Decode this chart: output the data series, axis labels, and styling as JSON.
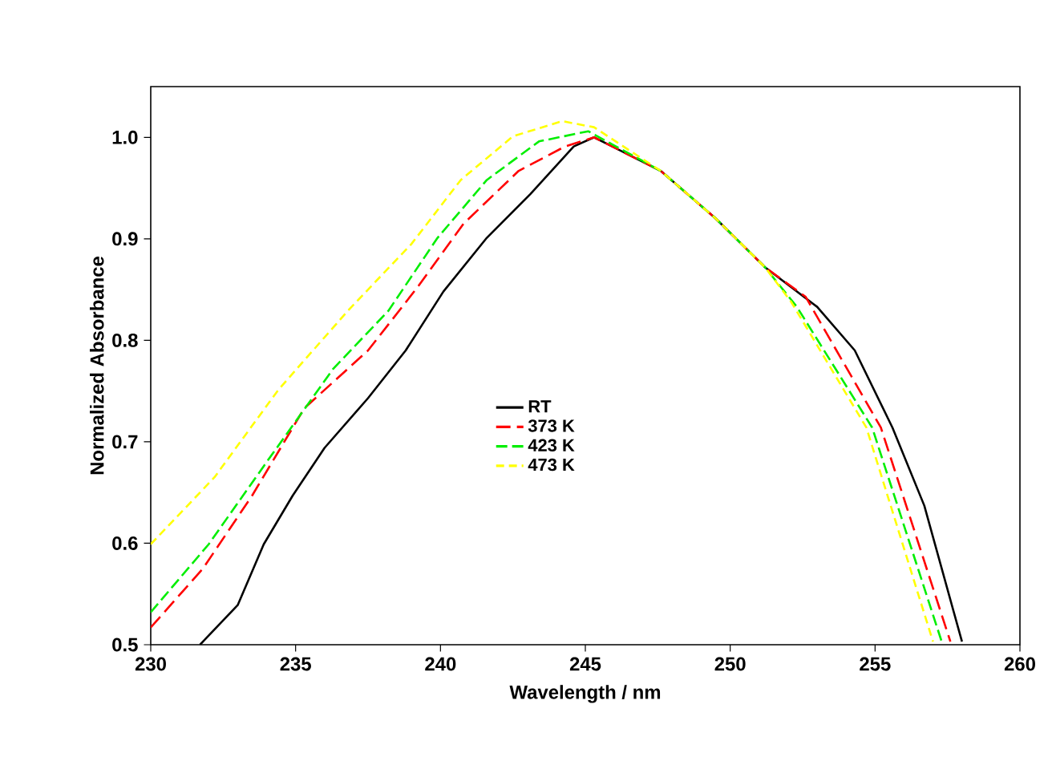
{
  "chart_data": {
    "type": "line",
    "xlabel": "Wavelength / nm",
    "ylabel": "Normalized Absorbance",
    "xlim": [
      230,
      260
    ],
    "ylim": [
      0.5,
      1.05
    ],
    "xticks": [
      230,
      235,
      240,
      245,
      250,
      255,
      260
    ],
    "yticks": [
      0.5,
      0.6,
      0.7,
      0.8,
      0.9,
      {
        "value": 1.0,
        "label": "1.0"
      }
    ],
    "grid": false,
    "legend": "center",
    "marker": "none",
    "series": [
      {
        "name": "RT",
        "color": "#000000",
        "line_style": "solid",
        "x": [
          231.7,
          233.0,
          233.9,
          234.9,
          236.0,
          237.5,
          238.8,
          240.1,
          241.6,
          243.1,
          244.6,
          245.3,
          247.6,
          249.5,
          251.2,
          253.0,
          254.3,
          255.6,
          256.7,
          258.0
        ],
        "values": [
          0.5,
          0.539,
          0.599,
          0.647,
          0.694,
          0.743,
          0.79,
          0.848,
          0.901,
          0.944,
          0.991,
          1.0,
          0.967,
          0.92,
          0.872,
          0.833,
          0.79,
          0.714,
          0.637,
          0.503
        ]
      },
      {
        "name": "373 K",
        "color": "#ff0000",
        "line_style": "dashed",
        "x": [
          230.0,
          231.8,
          233.5,
          235.3,
          237.5,
          239.2,
          240.8,
          242.7,
          244.3,
          245.3,
          247.6,
          249.5,
          251.2,
          252.6,
          255.2,
          257.6
        ],
        "values": [
          0.517,
          0.575,
          0.647,
          0.733,
          0.79,
          0.852,
          0.915,
          0.967,
          0.991,
          1.0,
          0.967,
          0.92,
          0.872,
          0.843,
          0.714,
          0.503
        ]
      },
      {
        "name": "423 K",
        "color": "#00ee00",
        "line_style": "dashed",
        "x": [
          230.0,
          232.0,
          234.0,
          236.3,
          238.2,
          239.9,
          241.6,
          243.4,
          245.1,
          247.6,
          249.5,
          251.2,
          252.3,
          254.9,
          257.3
        ],
        "values": [
          0.532,
          0.599,
          0.68,
          0.772,
          0.829,
          0.901,
          0.958,
          0.996,
          1.006,
          0.967,
          0.92,
          0.872,
          0.833,
          0.714,
          0.503
        ]
      },
      {
        "name": "473 K",
        "color": "#ffff00",
        "line_style": "dashed",
        "x": [
          230.0,
          232.2,
          234.4,
          236.8,
          239.0,
          240.7,
          242.5,
          244.2,
          245.3,
          247.6,
          249.5,
          251.2,
          252.1,
          254.7,
          257.0
        ],
        "values": [
          0.599,
          0.665,
          0.751,
          0.829,
          0.895,
          0.958,
          1.001,
          1.016,
          1.01,
          0.967,
          0.92,
          0.872,
          0.838,
          0.714,
          0.503
        ]
      }
    ]
  }
}
